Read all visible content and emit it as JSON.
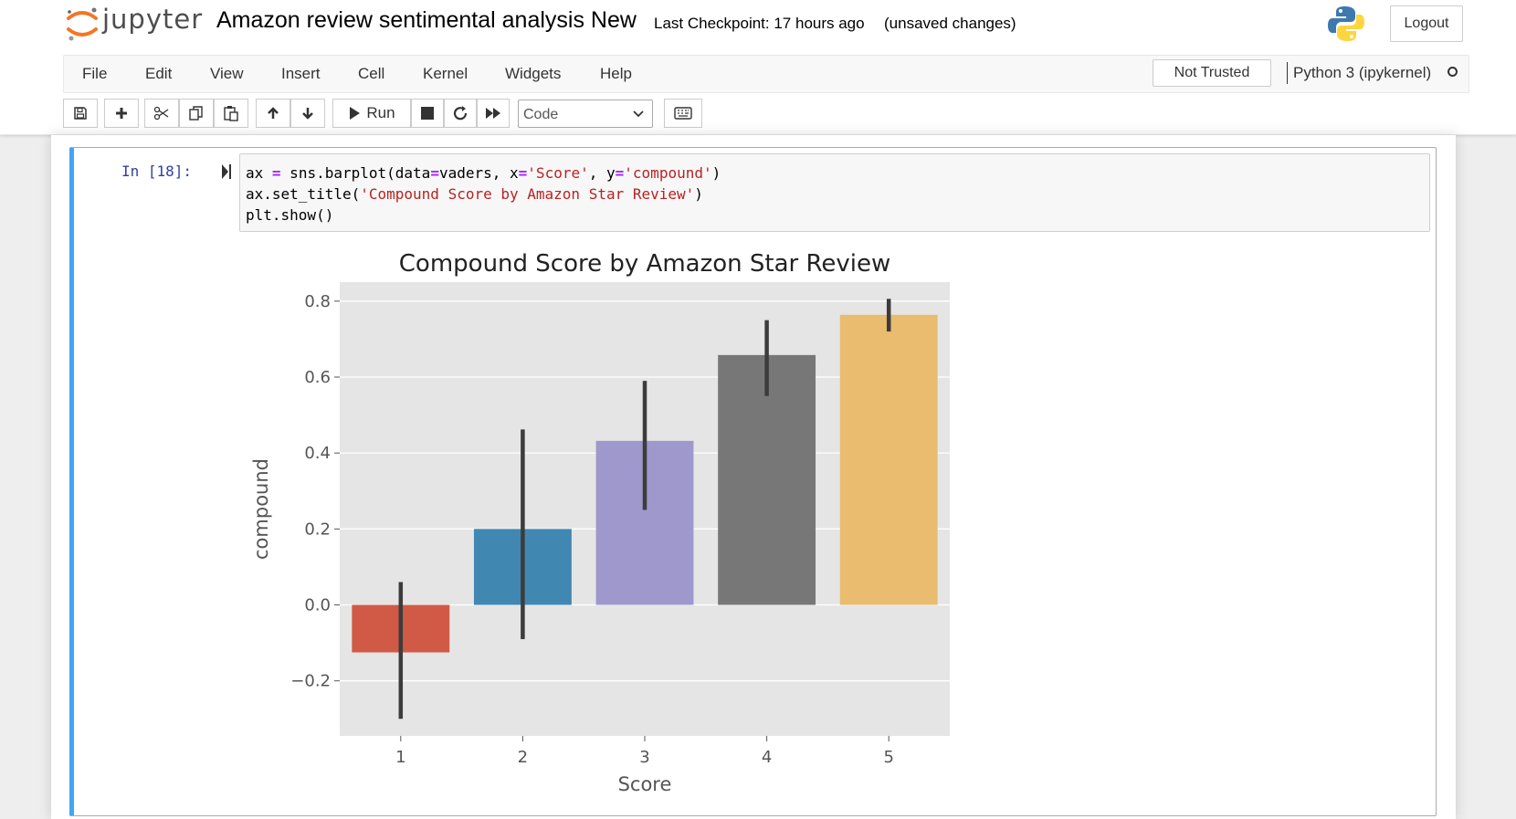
{
  "header": {
    "logo_text": "jupyter",
    "notebook_title": "Amazon review sentimental analysis New",
    "checkpoint": "Last Checkpoint: 17 hours ago",
    "unsaved": "(unsaved changes)",
    "logout_label": "Logout"
  },
  "menubar": {
    "items": [
      "File",
      "Edit",
      "View",
      "Insert",
      "Cell",
      "Kernel",
      "Widgets",
      "Help"
    ],
    "trust_label": "Not Trusted",
    "kernel_name": "Python 3 (ipykernel)"
  },
  "toolbar": {
    "buttons": [
      "save-icon",
      "plus-icon",
      "cut-icon",
      "copy-icon",
      "paste-icon",
      "arrow-up-icon",
      "arrow-down-icon",
      "run-icon",
      "stop-icon",
      "restart-icon",
      "fast-forward-icon",
      "keyboard-icon"
    ],
    "run_label": "Run",
    "cell_type": "Code"
  },
  "cell": {
    "prompt": "In [18]:",
    "code": [
      [
        {
          "t": "ax ",
          "c": ""
        },
        {
          "t": "=",
          "c": "op"
        },
        {
          "t": " sns.barplot(data",
          "c": ""
        },
        {
          "t": "=",
          "c": "op"
        },
        {
          "t": "vaders, x",
          "c": ""
        },
        {
          "t": "=",
          "c": "op"
        },
        {
          "t": "'Score'",
          "c": "str"
        },
        {
          "t": ", y",
          "c": ""
        },
        {
          "t": "=",
          "c": "op"
        },
        {
          "t": "'compound'",
          "c": "str"
        },
        {
          "t": ")",
          "c": ""
        }
      ],
      [
        {
          "t": "ax.set_title(",
          "c": ""
        },
        {
          "t": "'Compound Score by Amazon Star Review'",
          "c": "str"
        },
        {
          "t": ")",
          "c": ""
        }
      ],
      [
        {
          "t": "plt.show()",
          "c": ""
        }
      ]
    ]
  },
  "chart_data": {
    "type": "bar",
    "title": "Compound Score by Amazon Star Review",
    "xlabel": "Score",
    "ylabel": "compound",
    "categories": [
      "1",
      "2",
      "3",
      "4",
      "5"
    ],
    "values": [
      -0.125,
      0.2,
      0.432,
      0.658,
      0.764
    ],
    "error_low": [
      -0.3,
      -0.09,
      0.25,
      0.55,
      0.72
    ],
    "error_high": [
      0.06,
      0.462,
      0.59,
      0.75,
      0.806
    ],
    "colors": [
      "#d05a45",
      "#4088b2",
      "#9e98cd",
      "#777777",
      "#e9bc70"
    ],
    "yticks": [
      -0.2,
      0.0,
      0.2,
      0.4,
      0.6,
      0.8
    ],
    "ytick_labels": [
      "−0.2",
      "0.0",
      "0.2",
      "0.4",
      "0.6",
      "0.8"
    ],
    "ylim": [
      -0.345,
      0.85
    ],
    "grid": true,
    "background": "#e5e5e5"
  }
}
